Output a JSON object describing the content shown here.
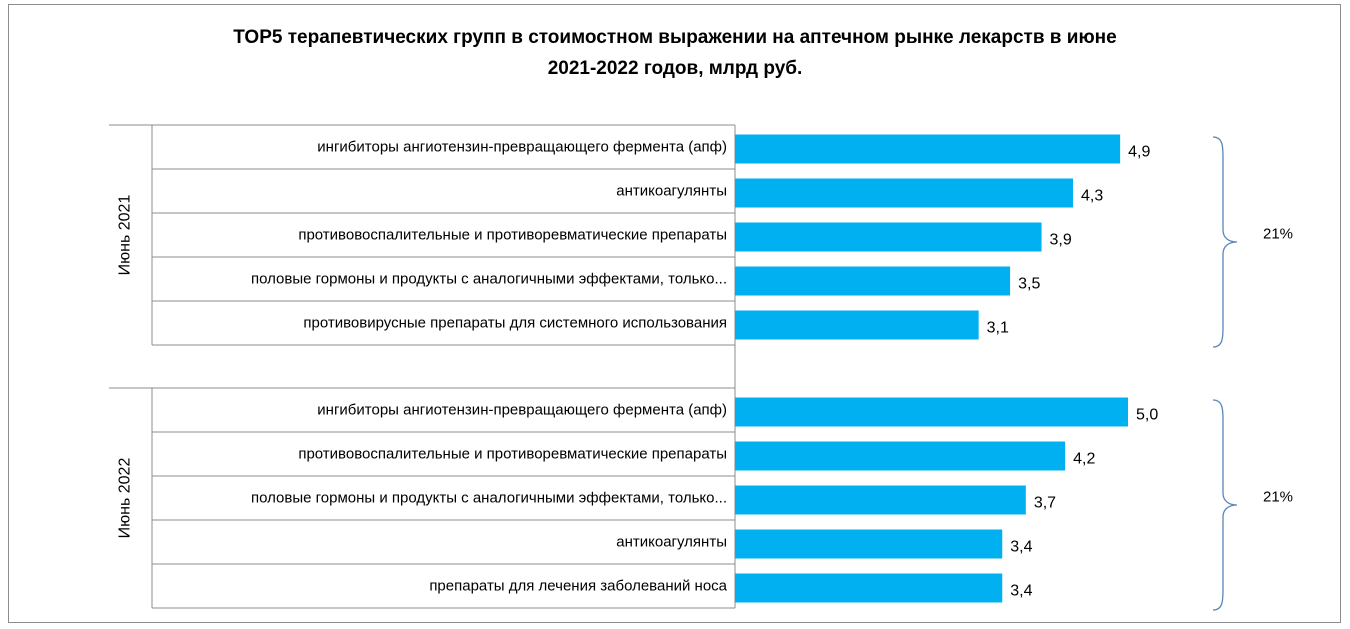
{
  "chart_data": {
    "type": "bar",
    "orientation": "horizontal",
    "title_line1": "ТОР5 терапевтических групп в стоимостном выражении на аптечном рынке лекарств в июне",
    "title_line2": "2021-2022 годов, млрд руб.",
    "bar_color": "#00b0f0",
    "bracket_color": "#5b86b8",
    "groups": [
      {
        "name": "Июнь 2021",
        "share": "21%",
        "categories": [
          "ингибиторы ангиотензин-превращающего фермента (апф)",
          "антикоагулянты",
          "противовоспалительные и противоревматические препараты",
          "половые гормоны и продукты с аналогичными эффектами, только...",
          "противовирусные препараты для системного использования"
        ],
        "values": [
          4.9,
          4.3,
          3.9,
          3.5,
          3.1
        ],
        "value_labels": [
          "4,9",
          "4,3",
          "3,9",
          "3,5",
          "3,1"
        ]
      },
      {
        "name": "Июнь 2022",
        "share": "21%",
        "categories": [
          "ингибиторы ангиотензин-превращающего фермента (апф)",
          "противовоспалительные и противоревматические препараты",
          "половые гормоны и продукты с аналогичными эффектами, только...",
          "антикоагулянты",
          "препараты для лечения заболеваний носа"
        ],
        "values": [
          5.0,
          4.2,
          3.7,
          3.4,
          3.4
        ],
        "value_labels": [
          "5,0",
          "4,2",
          "3,7",
          "3,4",
          "3,4"
        ]
      }
    ],
    "xlim": [
      0,
      5.0
    ],
    "grid": false,
    "legend": "none"
  }
}
